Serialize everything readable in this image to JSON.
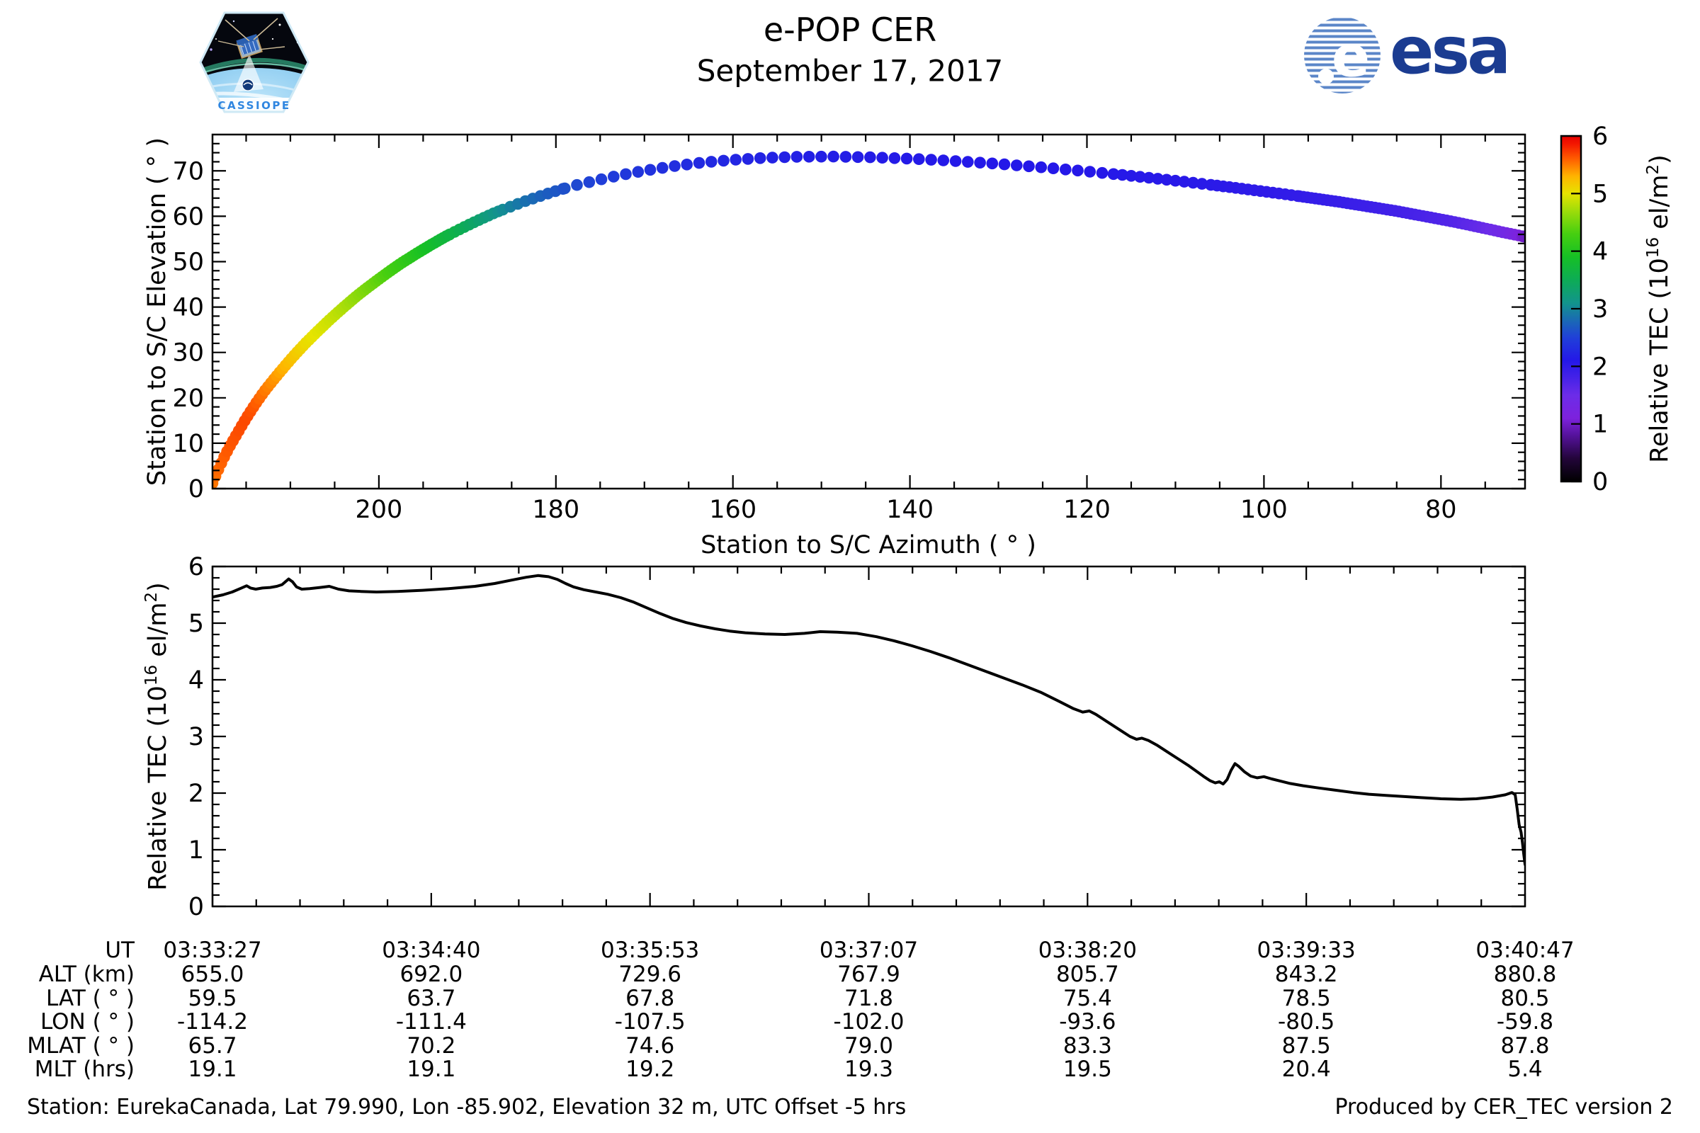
{
  "header": {
    "title": "e-POP CER",
    "subtitle": "September 17, 2017",
    "cassiope_label": "CASSIOPE",
    "esa_e": "e",
    "esa_label": "esa"
  },
  "footer": {
    "left": "Station: EurekaCanada, Lat 79.990, Lon -85.902, Elevation 32 m, UTC Offset -5 hrs",
    "right": "Produced by CER_TEC version 2"
  },
  "labels": {
    "upper_xlabel": "Station to S/C Azimuth ( ° )",
    "upper_ylabel": "Station to S/C Elevation ( ° )",
    "tec_label": {
      "pre": "Relative TEC (10",
      "sup": "16",
      "mid": " el/m",
      "sup2": "2",
      "post": ")"
    }
  },
  "colormap": {
    "range": [
      0,
      6
    ],
    "stops": [
      [
        0.0,
        "#000000"
      ],
      [
        0.4,
        "#23053a"
      ],
      [
        0.8,
        "#55129b"
      ],
      [
        1.1,
        "#7d22dd"
      ],
      [
        1.5,
        "#6c2ce8"
      ],
      [
        1.8,
        "#4522e8"
      ],
      [
        2.1,
        "#2418e8"
      ],
      [
        2.5,
        "#2040d8"
      ],
      [
        2.8,
        "#1a6ab4"
      ],
      [
        3.1,
        "#12948c"
      ],
      [
        3.5,
        "#0dac55"
      ],
      [
        3.9,
        "#16c025"
      ],
      [
        4.3,
        "#46cf10"
      ],
      [
        4.7,
        "#9edc0a"
      ],
      [
        5.0,
        "#e6e400"
      ],
      [
        5.3,
        "#ffb400"
      ],
      [
        5.6,
        "#ff5e00"
      ],
      [
        5.85,
        "#f41a00"
      ],
      [
        6.0,
        "#e60000"
      ]
    ]
  },
  "colorbar": {
    "ticks": [
      0,
      1,
      2,
      3,
      4,
      5,
      6
    ]
  },
  "chart_data": [
    {
      "type": "scatter",
      "title": "",
      "xlabel": "Station to S/C Azimuth (deg)",
      "ylabel": "Station to S/C Elevation (deg)",
      "xlim": [
        218.8,
        70.5
      ],
      "ylim": [
        0,
        78
      ],
      "x_ticks": [
        200,
        180,
        160,
        140,
        120,
        100,
        80
      ],
      "x_minor_step": 5,
      "y_ticks": [
        0,
        10,
        20,
        30,
        40,
        50,
        60,
        70
      ],
      "y_minor_step": 2,
      "legend": "colorbar right: Relative TEC (10^16 el/m^2), range 0-6",
      "marker_radius": 8.3,
      "path_anchors": [
        [
          218.8,
          1.2,
          5.52
        ],
        [
          218.3,
          3.5,
          5.56
        ],
        [
          217.6,
          6.5,
          5.6
        ],
        [
          216.8,
          9.5,
          5.63
        ],
        [
          215.9,
          12.5,
          5.66
        ],
        [
          215.0,
          15.5,
          5.68
        ],
        [
          214.0,
          18.5,
          5.62
        ],
        [
          213.0,
          21.3,
          5.52
        ],
        [
          211.9,
          24.0,
          5.42
        ],
        [
          210.7,
          26.8,
          5.3
        ],
        [
          209.5,
          29.5,
          5.18
        ],
        [
          208.2,
          32.2,
          5.06
        ],
        [
          206.8,
          34.9,
          4.97
        ],
        [
          205.4,
          37.5,
          4.88
        ],
        [
          203.9,
          40.1,
          4.76
        ],
        [
          202.4,
          42.6,
          4.62
        ],
        [
          200.8,
          45.0,
          4.48
        ],
        [
          199.2,
          47.3,
          4.33
        ],
        [
          197.6,
          49.5,
          4.18
        ],
        [
          195.9,
          51.6,
          4.02
        ],
        [
          194.2,
          53.6,
          3.86
        ],
        [
          192.5,
          55.5,
          3.7
        ],
        [
          190.7,
          57.3,
          3.52
        ],
        [
          188.9,
          59.0,
          3.33
        ],
        [
          187.1,
          60.6,
          3.14
        ],
        [
          185.3,
          62.0,
          2.97
        ],
        [
          183.5,
          63.3,
          2.84
        ],
        [
          181.7,
          64.5,
          2.74
        ],
        [
          179.8,
          65.7,
          2.65
        ],
        [
          177.6,
          66.9,
          2.56
        ],
        [
          175.2,
          68.0,
          2.49
        ],
        [
          172.6,
          69.1,
          2.43
        ],
        [
          169.8,
          70.1,
          2.37
        ],
        [
          166.8,
          71.0,
          2.32
        ],
        [
          163.6,
          71.8,
          2.28
        ],
        [
          160.2,
          72.4,
          2.24
        ],
        [
          156.6,
          72.85,
          2.21
        ],
        [
          152.8,
          73.1,
          2.18
        ],
        [
          148.8,
          73.15,
          2.16
        ],
        [
          144.6,
          73.0,
          2.14
        ],
        [
          140.2,
          72.7,
          2.12
        ],
        [
          135.6,
          72.25,
          2.11
        ],
        [
          130.8,
          71.65,
          2.1
        ],
        [
          125.8,
          70.9,
          2.1
        ],
        [
          120.6,
          70.0,
          2.09
        ],
        [
          115.2,
          68.95,
          2.08
        ],
        [
          109.6,
          67.75,
          2.06
        ],
        [
          103.8,
          66.4,
          2.03
        ],
        [
          97.8,
          64.9,
          1.99
        ],
        [
          91.6,
          63.2,
          1.93
        ],
        [
          85.2,
          61.2,
          1.84
        ],
        [
          78.6,
          58.8,
          1.7
        ],
        [
          75.2,
          57.4,
          1.55
        ],
        [
          72.6,
          56.3,
          1.35
        ],
        [
          71.3,
          55.8,
          1.15
        ],
        [
          70.6,
          55.5,
          1.0
        ]
      ],
      "sampling": [
        [
          218.8,
          192,
          0.33
        ],
        [
          192,
          186,
          0.55
        ],
        [
          186,
          179,
          0.85
        ],
        [
          179,
          117,
          1.38
        ],
        [
          117,
          106,
          1.0
        ],
        [
          106,
          96,
          0.7
        ],
        [
          96,
          70.7,
          0.45
        ]
      ]
    },
    {
      "type": "line",
      "title": "",
      "xlabel": "UT",
      "ylabel": "Relative TEC (10^16 el/m^2)",
      "x_tick_labels": [
        "03:33:27",
        "03:34:40",
        "03:35:53",
        "03:37:07",
        "03:38:20",
        "03:39:33",
        "03:40:47"
      ],
      "x_minor_per_interval": 5,
      "ylim": [
        0,
        6
      ],
      "y_ticks": [
        0,
        1,
        2,
        3,
        4,
        5,
        6
      ],
      "y_minor_step": 0.2,
      "line_color": "#000000",
      "line_width": 4,
      "points": [
        [
          0.0,
          5.46
        ],
        [
          0.008,
          5.5
        ],
        [
          0.015,
          5.55
        ],
        [
          0.022,
          5.62
        ],
        [
          0.026,
          5.66
        ],
        [
          0.029,
          5.62
        ],
        [
          0.033,
          5.6
        ],
        [
          0.038,
          5.62
        ],
        [
          0.044,
          5.63
        ],
        [
          0.049,
          5.65
        ],
        [
          0.053,
          5.68
        ],
        [
          0.058,
          5.78
        ],
        [
          0.061,
          5.73
        ],
        [
          0.064,
          5.64
        ],
        [
          0.068,
          5.6
        ],
        [
          0.074,
          5.61
        ],
        [
          0.082,
          5.63
        ],
        [
          0.089,
          5.65
        ],
        [
          0.096,
          5.6
        ],
        [
          0.104,
          5.57
        ],
        [
          0.113,
          5.56
        ],
        [
          0.125,
          5.55
        ],
        [
          0.141,
          5.56
        ],
        [
          0.16,
          5.58
        ],
        [
          0.18,
          5.61
        ],
        [
          0.2,
          5.65
        ],
        [
          0.215,
          5.7
        ],
        [
          0.228,
          5.76
        ],
        [
          0.239,
          5.81
        ],
        [
          0.248,
          5.84
        ],
        [
          0.256,
          5.82
        ],
        [
          0.263,
          5.77
        ],
        [
          0.269,
          5.7
        ],
        [
          0.275,
          5.64
        ],
        [
          0.283,
          5.59
        ],
        [
          0.292,
          5.55
        ],
        [
          0.301,
          5.51
        ],
        [
          0.311,
          5.45
        ],
        [
          0.321,
          5.37
        ],
        [
          0.331,
          5.27
        ],
        [
          0.341,
          5.17
        ],
        [
          0.351,
          5.08
        ],
        [
          0.361,
          5.01
        ],
        [
          0.372,
          4.95
        ],
        [
          0.383,
          4.9
        ],
        [
          0.394,
          4.86
        ],
        [
          0.406,
          4.83
        ],
        [
          0.421,
          4.81
        ],
        [
          0.436,
          4.8
        ],
        [
          0.451,
          4.82
        ],
        [
          0.463,
          4.85
        ],
        [
          0.476,
          4.84
        ],
        [
          0.491,
          4.82
        ],
        [
          0.506,
          4.76
        ],
        [
          0.519,
          4.69
        ],
        [
          0.533,
          4.6
        ],
        [
          0.547,
          4.5
        ],
        [
          0.561,
          4.39
        ],
        [
          0.575,
          4.27
        ],
        [
          0.589,
          4.15
        ],
        [
          0.603,
          4.03
        ],
        [
          0.617,
          3.91
        ],
        [
          0.631,
          3.78
        ],
        [
          0.645,
          3.62
        ],
        [
          0.656,
          3.49
        ],
        [
          0.663,
          3.43
        ],
        [
          0.668,
          3.45
        ],
        [
          0.673,
          3.39
        ],
        [
          0.681,
          3.27
        ],
        [
          0.691,
          3.12
        ],
        [
          0.699,
          3.0
        ],
        [
          0.704,
          2.95
        ],
        [
          0.708,
          2.97
        ],
        [
          0.713,
          2.93
        ],
        [
          0.72,
          2.84
        ],
        [
          0.728,
          2.72
        ],
        [
          0.736,
          2.6
        ],
        [
          0.744,
          2.48
        ],
        [
          0.75,
          2.38
        ],
        [
          0.756,
          2.28
        ],
        [
          0.76,
          2.22
        ],
        [
          0.764,
          2.18
        ],
        [
          0.767,
          2.2
        ],
        [
          0.77,
          2.16
        ],
        [
          0.773,
          2.24
        ],
        [
          0.776,
          2.4
        ],
        [
          0.779,
          2.52
        ],
        [
          0.782,
          2.47
        ],
        [
          0.786,
          2.38
        ],
        [
          0.791,
          2.3
        ],
        [
          0.796,
          2.27
        ],
        [
          0.801,
          2.29
        ],
        [
          0.807,
          2.25
        ],
        [
          0.814,
          2.21
        ],
        [
          0.821,
          2.17
        ],
        [
          0.831,
          2.13
        ],
        [
          0.843,
          2.09
        ],
        [
          0.856,
          2.05
        ],
        [
          0.869,
          2.01
        ],
        [
          0.881,
          1.98
        ],
        [
          0.894,
          1.96
        ],
        [
          0.907,
          1.94
        ],
        [
          0.921,
          1.92
        ],
        [
          0.936,
          1.9
        ],
        [
          0.951,
          1.89
        ],
        [
          0.963,
          1.9
        ],
        [
          0.975,
          1.93
        ],
        [
          0.985,
          1.97
        ],
        [
          0.99,
          2.01
        ],
        [
          0.9925,
          1.97
        ],
        [
          0.994,
          1.72
        ],
        [
          0.9955,
          1.44
        ],
        [
          0.997,
          1.31
        ],
        [
          0.998,
          1.13
        ],
        [
          0.999,
          0.93
        ],
        [
          1.0,
          0.74
        ]
      ]
    }
  ],
  "table": {
    "rows": [
      {
        "label": "UT",
        "values": [
          "03:33:27",
          "03:34:40",
          "03:35:53",
          "03:37:07",
          "03:38:20",
          "03:39:33",
          "03:40:47"
        ]
      },
      {
        "label": "ALT (km)",
        "values": [
          "655.0",
          "692.0",
          "729.6",
          "767.9",
          "805.7",
          "843.2",
          "880.8"
        ]
      },
      {
        "label": "LAT ( ° )",
        "values": [
          "59.5",
          "63.7",
          "67.8",
          "71.8",
          "75.4",
          "78.5",
          "80.5"
        ]
      },
      {
        "label": "LON ( ° )",
        "values": [
          "-114.2",
          "-111.4",
          "-107.5",
          "-102.0",
          "-93.6",
          "-80.5",
          "-59.8"
        ]
      },
      {
        "label": "MLAT ( ° )",
        "values": [
          "65.7",
          "70.2",
          "74.6",
          "79.0",
          "83.3",
          "87.5",
          "87.8"
        ]
      },
      {
        "label": "MLT (hrs)",
        "values": [
          "19.1",
          "19.1",
          "19.2",
          "19.3",
          "19.5",
          "20.4",
          "5.4"
        ]
      }
    ]
  }
}
